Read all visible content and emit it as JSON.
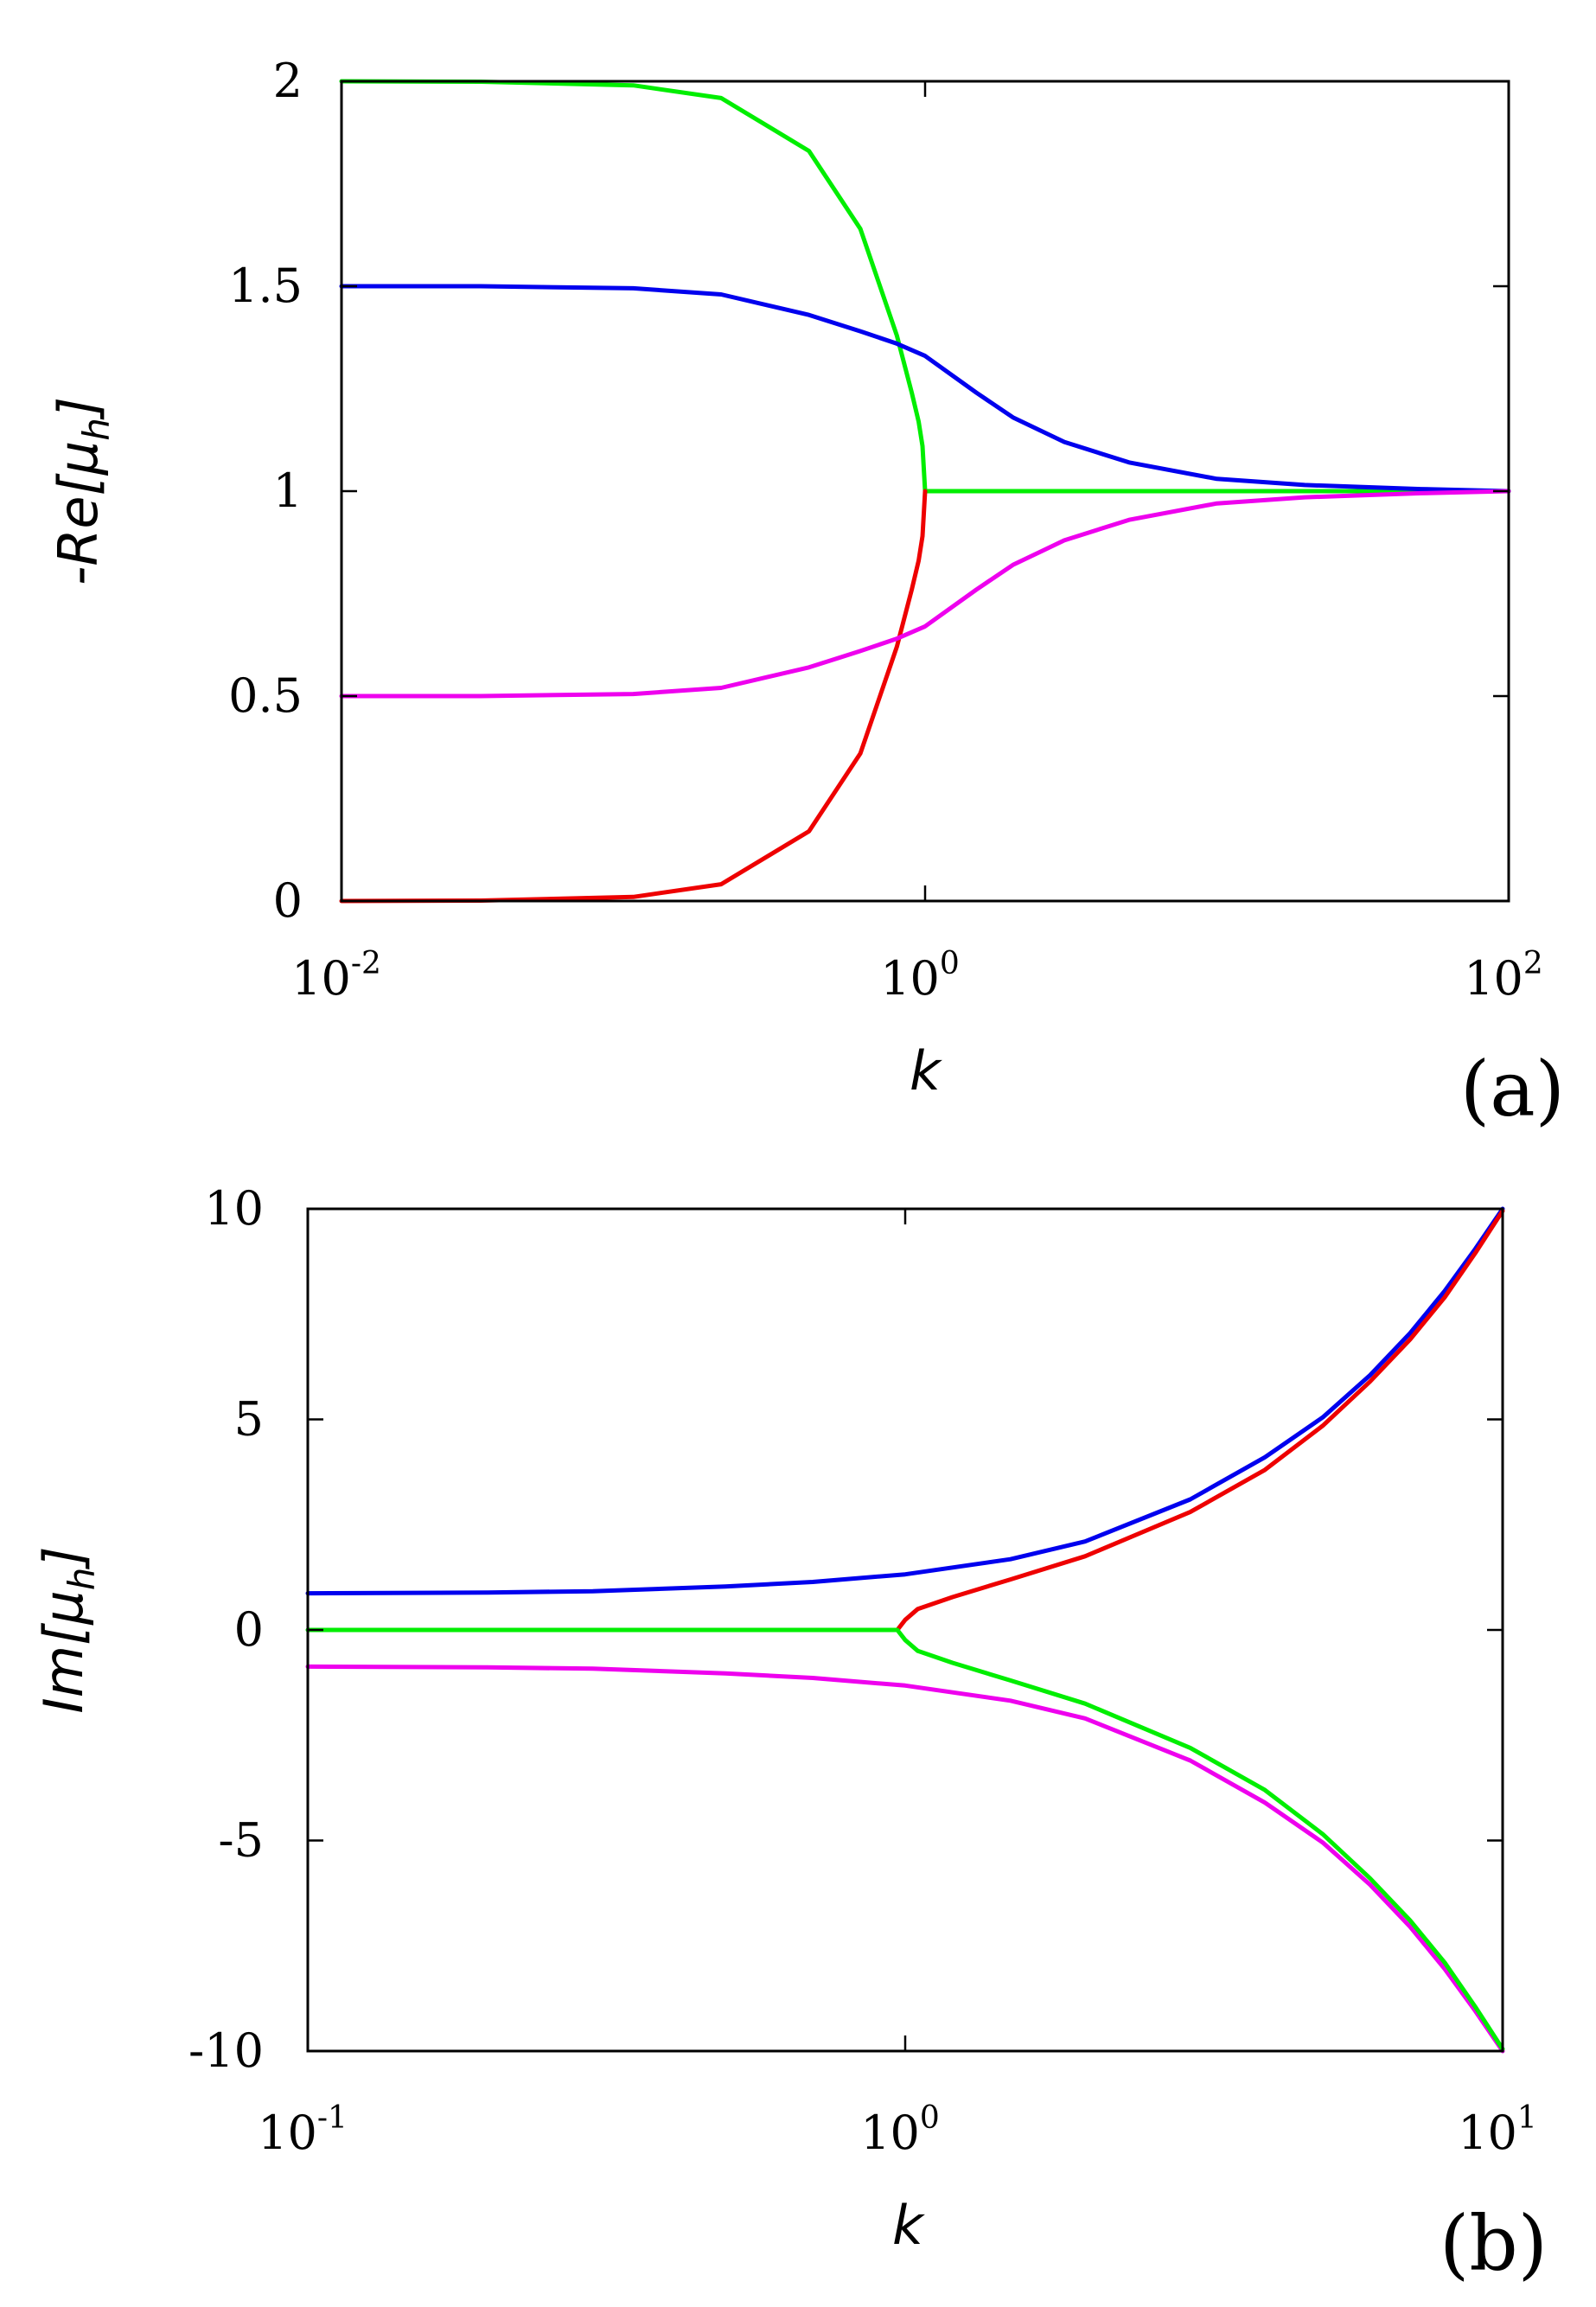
{
  "chart_data": [
    {
      "type": "line",
      "panel_label": "(a)",
      "xlabel": "k",
      "ylabel": {
        "main": "-Re[μ",
        "sub": "h",
        "close": "]"
      },
      "x_scale": "log",
      "xlim": [
        0.01,
        100
      ],
      "ylim": [
        0,
        2
      ],
      "x_ticks": [
        {
          "value": 0.01,
          "base": "10",
          "exp": "-2"
        },
        {
          "value": 1,
          "base": "10",
          "exp": "0"
        },
        {
          "value": 100,
          "base": "10",
          "exp": "2"
        }
      ],
      "y_ticks": [
        {
          "value": 0,
          "label": "0"
        },
        {
          "value": 0.5,
          "label": "0.5"
        },
        {
          "value": 1,
          "label": "1"
        },
        {
          "value": 1.5,
          "label": "1.5"
        },
        {
          "value": 2,
          "label": "2"
        }
      ],
      "grid": false,
      "series": [
        {
          "name": "green",
          "color": "#00ee00",
          "x": [
            0.01,
            0.03,
            0.1,
            0.2,
            0.4,
            0.6,
            0.8,
            0.9,
            0.95,
            0.98,
            1.0,
            3,
            10,
            100
          ],
          "y": [
            2.0,
            1.999,
            1.99,
            1.959,
            1.83,
            1.64,
            1.38,
            1.24,
            1.17,
            1.11,
            1.0,
            1.0,
            1.0,
            1.0
          ]
        },
        {
          "name": "red",
          "color": "#ee0000",
          "x": [
            0.01,
            0.03,
            0.1,
            0.2,
            0.4,
            0.6,
            0.8,
            0.9,
            0.95,
            0.98,
            1.0
          ],
          "y": [
            0.0,
            0.001,
            0.01,
            0.041,
            0.17,
            0.36,
            0.62,
            0.76,
            0.83,
            0.89,
            1.0
          ]
        },
        {
          "name": "blue",
          "color": "#0000ee",
          "x": [
            0.01,
            0.03,
            0.1,
            0.2,
            0.4,
            0.6,
            0.8,
            1.0,
            1.5,
            2,
            3,
            5,
            10,
            20,
            50,
            100
          ],
          "y": [
            1.5,
            1.5,
            1.495,
            1.48,
            1.43,
            1.39,
            1.36,
            1.33,
            1.24,
            1.18,
            1.12,
            1.07,
            1.03,
            1.015,
            1.005,
            1.0
          ]
        },
        {
          "name": "magenta",
          "color": "#ee00ee",
          "x": [
            0.01,
            0.03,
            0.1,
            0.2,
            0.4,
            0.6,
            0.8,
            1.0,
            1.5,
            2,
            3,
            5,
            10,
            20,
            50,
            100
          ],
          "y": [
            0.5,
            0.5,
            0.505,
            0.52,
            0.57,
            0.61,
            0.64,
            0.67,
            0.76,
            0.82,
            0.88,
            0.93,
            0.97,
            0.985,
            0.995,
            1.0
          ]
        }
      ]
    },
    {
      "type": "line",
      "panel_label": "(b)",
      "xlabel": "k",
      "ylabel": {
        "main": "Im[μ",
        "sub": "h",
        "close": "]"
      },
      "x_scale": "log",
      "xlim": [
        0.1,
        10
      ],
      "ylim": [
        -10,
        10
      ],
      "x_ticks": [
        {
          "value": 0.1,
          "base": "10",
          "exp": "-1"
        },
        {
          "value": 1,
          "base": "10",
          "exp": "0"
        },
        {
          "value": 10,
          "base": "10",
          "exp": "1"
        }
      ],
      "y_ticks": [
        {
          "value": -10,
          "label": "-10"
        },
        {
          "value": -5,
          "label": "-5"
        },
        {
          "value": 0,
          "label": "0"
        },
        {
          "value": 5,
          "label": "5"
        },
        {
          "value": 10,
          "label": "10"
        }
      ],
      "grid": false,
      "series": [
        {
          "name": "blue",
          "color": "#0000ee",
          "x": [
            0.1,
            0.2,
            0.3,
            0.5,
            0.7,
            1.0,
            1.5,
            2,
            3,
            4,
            5,
            6,
            7,
            8,
            9,
            10
          ],
          "y": [
            0.87,
            0.89,
            0.92,
            1.03,
            1.14,
            1.32,
            1.68,
            2.1,
            3.1,
            4.1,
            5.05,
            6.05,
            7.05,
            8.05,
            9.05,
            10.0
          ]
        },
        {
          "name": "magenta",
          "color": "#ee00ee",
          "x": [
            0.1,
            0.2,
            0.3,
            0.5,
            0.7,
            1.0,
            1.5,
            2,
            3,
            4,
            5,
            6,
            7,
            8,
            9,
            10
          ],
          "y": [
            -0.87,
            -0.89,
            -0.92,
            -1.03,
            -1.14,
            -1.32,
            -1.68,
            -2.1,
            -3.1,
            -4.1,
            -5.05,
            -6.05,
            -7.05,
            -8.05,
            -9.05,
            -10.0
          ]
        },
        {
          "name": "red",
          "color": "#ee0000",
          "x": [
            0.97,
            1.0,
            1.05,
            1.2,
            1.5,
            2,
            3,
            4,
            5,
            6,
            7,
            8,
            9,
            10
          ],
          "y": [
            0.0,
            0.24,
            0.5,
            0.78,
            1.2,
            1.75,
            2.8,
            3.8,
            4.85,
            5.9,
            6.9,
            7.9,
            8.95,
            9.95
          ]
        },
        {
          "name": "green",
          "color": "#00ee00",
          "x": [
            0.1,
            0.5,
            0.97,
            1.0,
            1.05,
            1.2,
            1.5,
            2,
            3,
            4,
            5,
            6,
            7,
            8,
            9,
            10
          ],
          "y": [
            0.0,
            0.0,
            0.0,
            -0.24,
            -0.5,
            -0.78,
            -1.2,
            -1.75,
            -2.8,
            -3.8,
            -4.85,
            -5.9,
            -6.9,
            -7.9,
            -8.95,
            -9.95
          ]
        }
      ]
    }
  ]
}
